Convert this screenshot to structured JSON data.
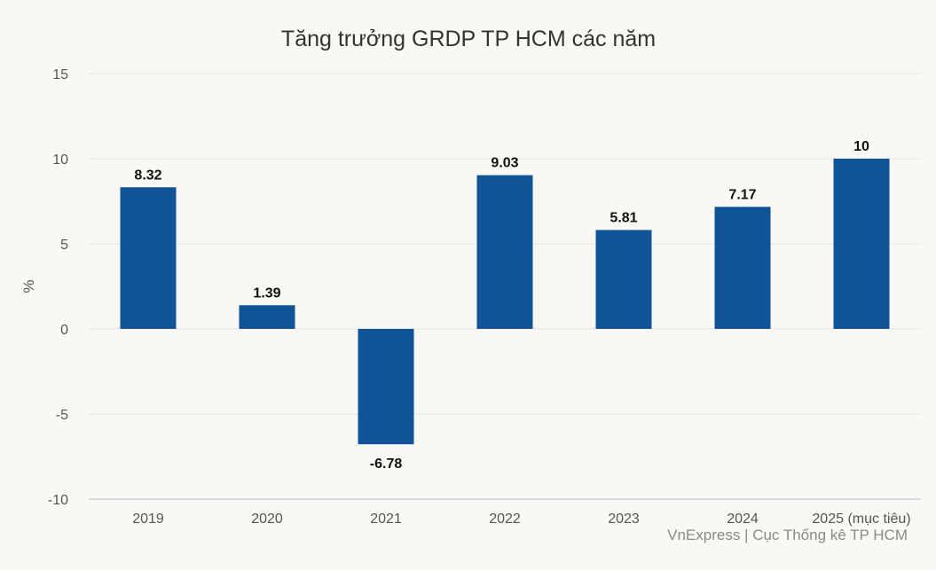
{
  "chart_data": {
    "type": "bar",
    "title": "Tăng trưởng GRDP TP HCM các năm",
    "xlabel": "",
    "ylabel": "%",
    "categories": [
      "2019",
      "2020",
      "2021",
      "2022",
      "2023",
      "2024",
      "2025 (mục tiêu)"
    ],
    "values": [
      8.32,
      1.39,
      -6.78,
      9.03,
      5.81,
      7.17,
      10
    ],
    "value_labels": [
      "8.32",
      "1.39",
      "-6.78",
      "9.03",
      "5.81",
      "7.17",
      "10"
    ],
    "ylim": [
      -10,
      15
    ],
    "yticks": [
      15,
      10,
      5,
      0,
      -5,
      -10
    ],
    "ytick_labels": [
      "15",
      "10",
      "5",
      "0",
      "-5",
      "-10"
    ],
    "grid": true,
    "legend": "none",
    "bar_color": "#0f5496"
  },
  "credit": "VnExpress | Cục Thống kê TP HCM"
}
